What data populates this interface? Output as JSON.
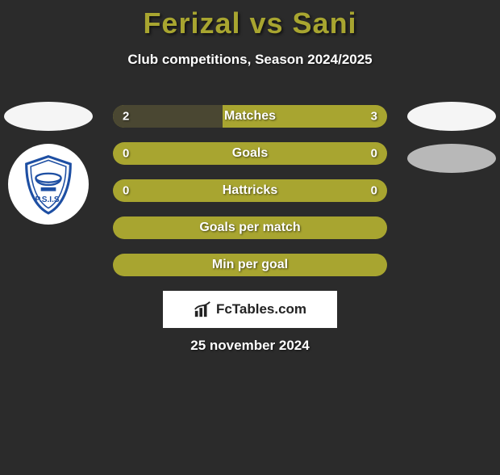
{
  "title": "Ferizal vs Sani",
  "subtitle": "Club competitions, Season 2024/2025",
  "date": "25 november 2024",
  "watermark_text": "FcTables.com",
  "colors": {
    "background": "#2b2b2b",
    "title": "#a8a530",
    "text": "#ffffff",
    "bar_left_seg": "#4a4732",
    "bar_fill": "#a8a530",
    "ellipse_white": "#f5f5f5",
    "ellipse_grey": "#b8b8b8",
    "badge_blue": "#1e4fa3"
  },
  "left_ellipses": [
    "white"
  ],
  "right_ellipses": [
    "white",
    "grey"
  ],
  "bars": [
    {
      "label": "Matches",
      "left_val": "2",
      "right_val": "3",
      "left_pct": 40,
      "right_pct": 60,
      "show_vals": true
    },
    {
      "label": "Goals",
      "left_val": "0",
      "right_val": "0",
      "left_pct": 0,
      "right_pct": 100,
      "show_vals": true
    },
    {
      "label": "Hattricks",
      "left_val": "0",
      "right_val": "0",
      "left_pct": 0,
      "right_pct": 100,
      "show_vals": true
    },
    {
      "label": "Goals per match",
      "left_val": "",
      "right_val": "",
      "left_pct": 0,
      "right_pct": 100,
      "show_vals": false
    },
    {
      "label": "Min per goal",
      "left_val": "",
      "right_val": "",
      "left_pct": 0,
      "right_pct": 100,
      "show_vals": false
    }
  ],
  "fonts": {
    "title_size": 36,
    "subtitle_size": 17,
    "bar_label_size": 16,
    "bar_val_size": 15,
    "date_size": 17
  }
}
